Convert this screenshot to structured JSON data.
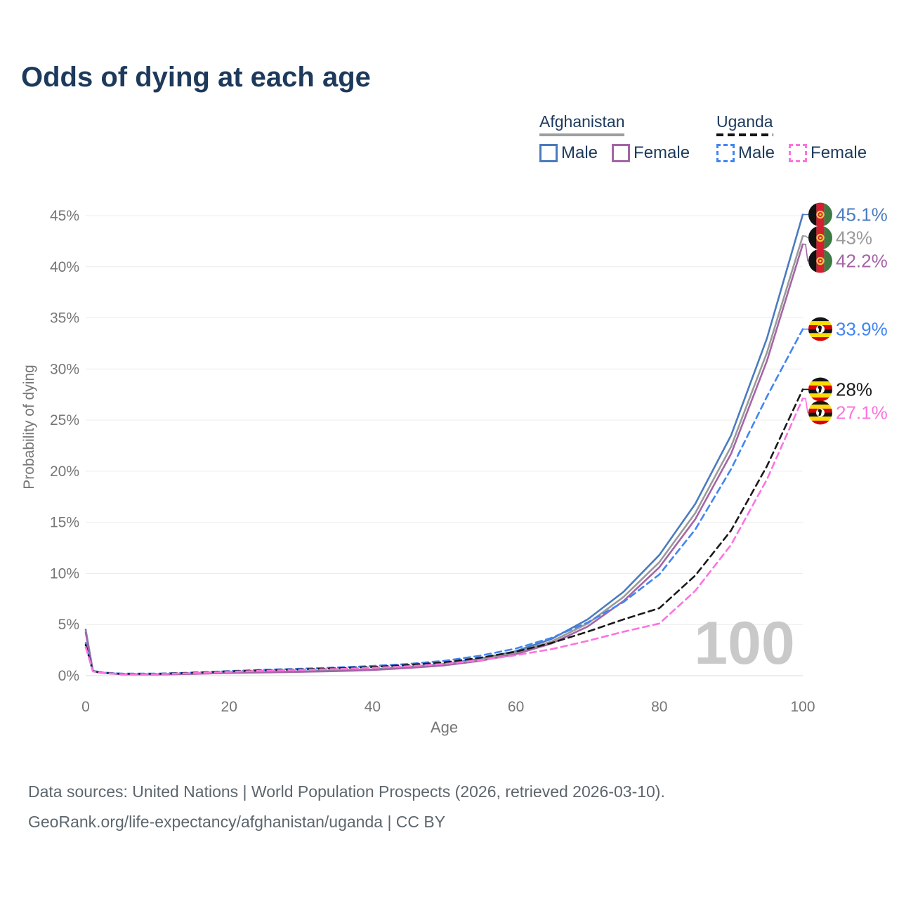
{
  "title": "Odds of dying at each age",
  "legend": {
    "afghanistan": {
      "label": "Afghanistan",
      "male_label": "Male",
      "female_label": "Female"
    },
    "uganda": {
      "label": "Uganda",
      "male_label": "Male",
      "female_label": "Female"
    }
  },
  "colors": {
    "title_text": "#1d3a5c",
    "axis_text": "#767676",
    "gridline": "#ececec",
    "baseline": "#d9d9d9",
    "watermark": "#c9c9c9",
    "afghanistan_male": "#4a7bbf",
    "afghanistan_both": "#9a9a9a",
    "afghanistan_female": "#a565a5",
    "uganda_male": "#4285f4",
    "uganda_both": "#1a1a1a",
    "uganda_female": "#fb74de"
  },
  "chart_data": {
    "type": "line",
    "title": "Odds of dying at each age",
    "xlabel": "Age",
    "ylabel": "Probability of dying",
    "xlim": [
      0,
      100
    ],
    "ylim_percent": [
      0,
      45
    ],
    "x_ticks": [
      0,
      20,
      40,
      60,
      80,
      100
    ],
    "y_tick_labels": [
      "0%",
      "5%",
      "10%",
      "15%",
      "20%",
      "25%",
      "30%",
      "35%",
      "40%",
      "45%"
    ],
    "grid": true,
    "legend_position": "top-right",
    "hover_age_watermark": "100",
    "ages": [
      0,
      1,
      2,
      5,
      10,
      15,
      20,
      25,
      30,
      35,
      40,
      45,
      50,
      55,
      60,
      65,
      70,
      75,
      80,
      85,
      90,
      95,
      100
    ],
    "series": [
      {
        "id": "afghanistan-male",
        "legend": "Afghanistan Male",
        "country": "afghanistan",
        "style": "solid",
        "color": "#4a7bbf",
        "flag": "afghanistan",
        "end_label": "45.1%",
        "end_label_color": "#4a7bbf",
        "values_percent": [
          4.5,
          0.5,
          0.3,
          0.15,
          0.14,
          0.2,
          0.3,
          0.35,
          0.42,
          0.5,
          0.62,
          0.85,
          1.15,
          1.65,
          2.4,
          3.6,
          5.5,
          8.2,
          11.8,
          16.8,
          23.5,
          33.0,
          45.1
        ]
      },
      {
        "id": "afghanistan-both",
        "legend": "Afghanistan",
        "country": "afghanistan",
        "style": "solid",
        "color": "#9a9a9a",
        "flag": "afghanistan",
        "end_label": "43%",
        "end_label_color": "#9a9a9a",
        "values_percent": [
          4.35,
          0.47,
          0.29,
          0.14,
          0.13,
          0.18,
          0.28,
          0.33,
          0.39,
          0.47,
          0.58,
          0.8,
          1.08,
          1.55,
          2.25,
          3.35,
          5.1,
          7.7,
          11.1,
          15.9,
          22.4,
          31.6,
          43.0
        ]
      },
      {
        "id": "afghanistan-female",
        "legend": "Afghanistan Female",
        "country": "afghanistan",
        "style": "solid",
        "color": "#a565a5",
        "flag": "afghanistan",
        "end_label": "42.2%",
        "end_label_color": "#a565a5",
        "values_percent": [
          4.2,
          0.45,
          0.28,
          0.13,
          0.12,
          0.17,
          0.26,
          0.31,
          0.37,
          0.44,
          0.55,
          0.75,
          1.0,
          1.45,
          2.1,
          3.15,
          4.8,
          7.3,
          10.6,
          15.3,
          21.7,
          30.8,
          42.2
        ]
      },
      {
        "id": "uganda-male",
        "legend": "Uganda Male",
        "country": "uganda",
        "style": "dashed",
        "color": "#4285f4",
        "flag": "uganda",
        "end_label": "33.9%",
        "end_label_color": "#4285f4",
        "values_percent": [
          3.2,
          0.5,
          0.32,
          0.2,
          0.2,
          0.3,
          0.45,
          0.58,
          0.68,
          0.8,
          0.95,
          1.15,
          1.45,
          1.95,
          2.65,
          3.7,
          5.2,
          7.2,
          9.9,
          14.3,
          20.2,
          27.3,
          33.9
        ]
      },
      {
        "id": "uganda-both",
        "legend": "Uganda",
        "country": "uganda",
        "style": "dashed",
        "color": "#1a1a1a",
        "flag": "uganda",
        "end_label": "28%",
        "end_label_color": "#1a1a1a",
        "values_percent": [
          3.0,
          0.45,
          0.3,
          0.18,
          0.18,
          0.28,
          0.42,
          0.52,
          0.62,
          0.72,
          0.85,
          1.05,
          1.3,
          1.75,
          2.35,
          3.2,
          4.3,
          5.5,
          6.6,
          9.8,
          14.2,
          20.5,
          28.0
        ]
      },
      {
        "id": "uganda-female",
        "legend": "Uganda Female",
        "country": "uganda",
        "style": "dashed",
        "color": "#fb74de",
        "flag": "uganda",
        "end_label": "27.1%",
        "end_label_color": "#fb74de",
        "values_percent": [
          2.8,
          0.42,
          0.28,
          0.16,
          0.16,
          0.25,
          0.38,
          0.48,
          0.56,
          0.65,
          0.76,
          0.92,
          1.15,
          1.5,
          2.0,
          2.6,
          3.4,
          4.3,
          5.1,
          8.3,
          12.8,
          19.2,
          27.1
        ]
      }
    ]
  },
  "footer": {
    "line1": "Data sources: United Nations | World Population Prospects (2026, retrieved 2026-03-10).",
    "line2": "GeoRank.org/life-expectancy/afghanistan/uganda | CC BY"
  }
}
